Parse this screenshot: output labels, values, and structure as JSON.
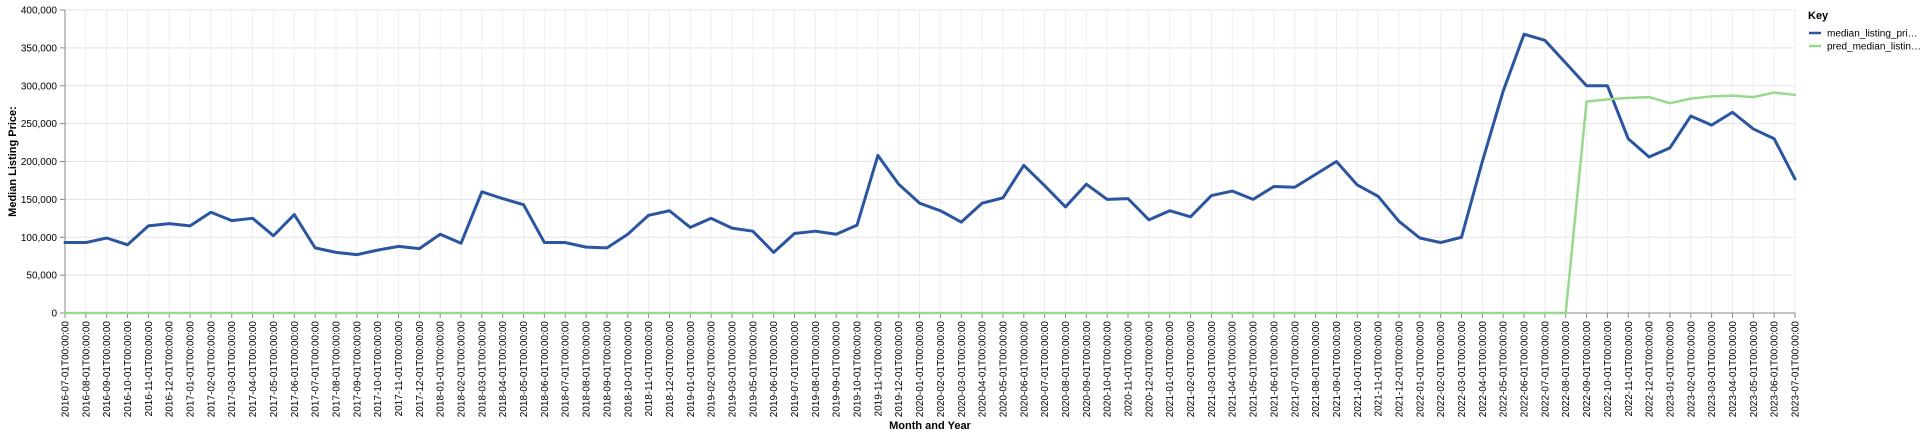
{
  "chart_data": {
    "type": "line",
    "xlabel": "Month and Year",
    "ylabel": "Median Listing Price:",
    "ylim": [
      0,
      400000
    ],
    "yticks": [
      0,
      50000,
      100000,
      150000,
      200000,
      250000,
      300000,
      350000,
      400000
    ],
    "ytick_labels": [
      "0",
      "50,000",
      "100,000",
      "150,000",
      "200,000",
      "250,000",
      "300,000",
      "350,000",
      "400,000"
    ],
    "grid": true,
    "legend": {
      "title": "Key",
      "placement": "top-right"
    },
    "x": [
      "2016-07-01T00:00:00",
      "2016-08-01T00:00:00",
      "2016-09-01T00:00:00",
      "2016-10-01T00:00:00",
      "2016-11-01T00:00:00",
      "2016-12-01T00:00:00",
      "2017-01-01T00:00:00",
      "2017-02-01T00:00:00",
      "2017-03-01T00:00:00",
      "2017-04-01T00:00:00",
      "2017-05-01T00:00:00",
      "2017-06-01T00:00:00",
      "2017-07-01T00:00:00",
      "2017-08-01T00:00:00",
      "2017-09-01T00:00:00",
      "2017-10-01T00:00:00",
      "2017-11-01T00:00:00",
      "2017-12-01T00:00:00",
      "2018-01-01T00:00:00",
      "2018-02-01T00:00:00",
      "2018-03-01T00:00:00",
      "2018-04-01T00:00:00",
      "2018-05-01T00:00:00",
      "2018-06-01T00:00:00",
      "2018-07-01T00:00:00",
      "2018-08-01T00:00:00",
      "2018-09-01T00:00:00",
      "2018-10-01T00:00:00",
      "2018-11-01T00:00:00",
      "2018-12-01T00:00:00",
      "2019-01-01T00:00:00",
      "2019-02-01T00:00:00",
      "2019-03-01T00:00:00",
      "2019-05-01T00:00:00",
      "2019-06-01T00:00:00",
      "2019-07-01T00:00:00",
      "2019-08-01T00:00:00",
      "2019-09-01T00:00:00",
      "2019-10-01T00:00:00",
      "2019-11-01T00:00:00",
      "2019-12-01T00:00:00",
      "2020-01-01T00:00:00",
      "2020-02-01T00:00:00",
      "2020-03-01T00:00:00",
      "2020-04-01T00:00:00",
      "2020-05-01T00:00:00",
      "2020-06-01T00:00:00",
      "2020-07-01T00:00:00",
      "2020-08-01T00:00:00",
      "2020-09-01T00:00:00",
      "2020-10-01T00:00:00",
      "2020-11-01T00:00:00",
      "2020-12-01T00:00:00",
      "2021-01-01T00:00:00",
      "2021-02-01T00:00:00",
      "2021-03-01T00:00:00",
      "2021-04-01T00:00:00",
      "2021-05-01T00:00:00",
      "2021-06-01T00:00:00",
      "2021-07-01T00:00:00",
      "2021-08-01T00:00:00",
      "2021-09-01T00:00:00",
      "2021-10-01T00:00:00",
      "2021-11-01T00:00:00",
      "2021-12-01T00:00:00",
      "2022-01-01T00:00:00",
      "2022-02-01T00:00:00",
      "2022-03-01T00:00:00",
      "2022-04-01T00:00:00",
      "2022-05-01T00:00:00",
      "2022-06-01T00:00:00",
      "2022-07-01T00:00:00",
      "2022-08-01T00:00:00",
      "2022-09-01T00:00:00",
      "2022-10-01T00:00:00",
      "2022-11-01T00:00:00",
      "2022-12-01T00:00:00",
      "2023-01-01T00:00:00",
      "2023-02-01T00:00:00",
      "2023-03-01T00:00:00",
      "2023-04-01T00:00:00",
      "2023-05-01T00:00:00",
      "2023-06-01T00:00:00",
      "2023-07-01T00:00:00"
    ],
    "series": [
      {
        "name": "median_listing_pri…",
        "color": "#2b55a0",
        "values": [
          93000,
          93000,
          99000,
          90000,
          115000,
          118000,
          115000,
          133000,
          122000,
          125000,
          102000,
          130000,
          86000,
          80000,
          77000,
          83000,
          88000,
          85000,
          104000,
          92000,
          160000,
          151000,
          143000,
          93000,
          93000,
          87000,
          86000,
          104000,
          129000,
          135000,
          113000,
          125000,
          112000,
          108000,
          80000,
          105000,
          108000,
          104000,
          116000,
          208000,
          170000,
          145000,
          135000,
          120000,
          145000,
          152000,
          195000,
          168000,
          140000,
          170000,
          150000,
          151000,
          123000,
          135000,
          127000,
          155000,
          161000,
          150000,
          167000,
          166000,
          183000,
          200000,
          169000,
          154000,
          121000,
          99000,
          93000,
          100000,
          200000,
          293000,
          368000,
          360000,
          330000,
          300000,
          300000,
          230000,
          206000,
          218000,
          260000,
          248000,
          265000,
          243000,
          230000,
          177000
        ]
      },
      {
        "name": "pred_median_listin…",
        "color": "#98d98e",
        "values": [
          0,
          0,
          0,
          0,
          0,
          0,
          0,
          0,
          0,
          0,
          0,
          0,
          0,
          0,
          0,
          0,
          0,
          0,
          0,
          0,
          0,
          0,
          0,
          0,
          0,
          0,
          0,
          0,
          0,
          0,
          0,
          0,
          0,
          0,
          0,
          0,
          0,
          0,
          0,
          0,
          0,
          0,
          0,
          0,
          0,
          0,
          0,
          0,
          0,
          0,
          0,
          0,
          0,
          0,
          0,
          0,
          0,
          0,
          0,
          0,
          0,
          0,
          0,
          0,
          0,
          0,
          0,
          0,
          0,
          0,
          0,
          0,
          0,
          279000,
          282000,
          284000,
          285000,
          277000,
          283000,
          286000,
          287000,
          285000,
          291000,
          288000
        ]
      }
    ]
  }
}
